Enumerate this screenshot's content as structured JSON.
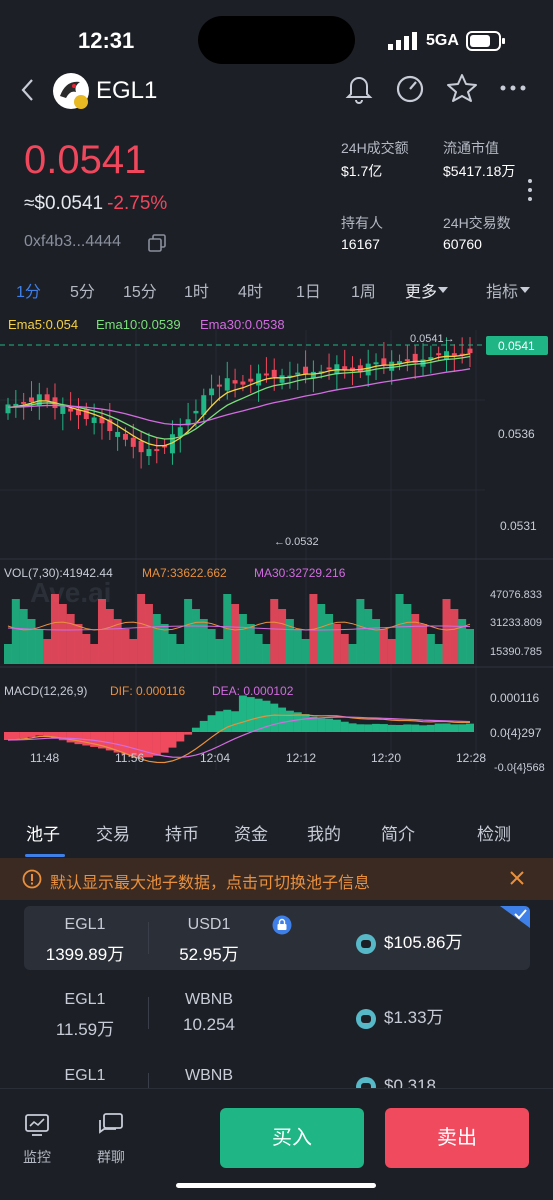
{
  "status_bar": {
    "time": "12:31",
    "network": "5GA"
  },
  "token": {
    "name": "EGL1",
    "price": "0.0541",
    "price_usd": "≈$0.0541",
    "change": "-2.75%",
    "address": "0xf4b3...4444"
  },
  "stats": [
    {
      "label": "24H成交额",
      "value": "$1.7亿"
    },
    {
      "label": "流通市值",
      "value": "$5417.18万"
    },
    {
      "label": "持有人",
      "value": "16167"
    },
    {
      "label": "24H交易数",
      "value": "60760"
    }
  ],
  "timeframes": [
    "1分",
    "5分",
    "15分",
    "1时",
    "4时",
    "1日",
    "1周",
    "更多",
    "指标"
  ],
  "ema": {
    "ema5": "Ema5:0.054",
    "ema10": "Ema10:0.0539",
    "ema30": "Ema30:0.0538"
  },
  "chart_data": [
    {
      "type": "candlestick",
      "title": "",
      "y_ticks": [
        "0.0541",
        "0.0536",
        "0.0531"
      ],
      "current_price_label": "0.0541",
      "high_marker": "0.0541→",
      "low_marker": "←0.0532",
      "x_ticks": [
        "11:48",
        "11:56",
        "12:04",
        "12:12",
        "12:20",
        "12:28"
      ],
      "approx_close_series": [
        0.05375,
        0.05378,
        0.05382,
        0.05376,
        0.05372,
        0.0537,
        0.05366,
        0.05359,
        0.05352,
        0.05348,
        0.0535,
        0.0536,
        0.05372,
        0.05385,
        0.05392,
        0.05388,
        0.05394,
        0.05396,
        0.05392,
        0.05398,
        0.05395,
        0.05401,
        0.05397,
        0.05399,
        0.05403,
        0.05401,
        0.05405,
        0.05403,
        0.05409,
        0.05406,
        0.0541
      ]
    },
    {
      "type": "bar",
      "title": "VOL(7,30):41942.44",
      "ma7": "MA7:33622.662",
      "ma30": "MA30:32729.216",
      "y_ticks": [
        "47076.833",
        "31233.809",
        "15390.785"
      ]
    },
    {
      "type": "bar",
      "title": "MACD(12,26,9)",
      "dif": "DIF: 0.000116",
      "dea": "DEA: 0.000102",
      "y_ticks": [
        "0.000116",
        "0.0{4}297",
        "-0.0{4}568"
      ]
    }
  ],
  "watermark": "Ave.ai",
  "tabs": [
    "池子",
    "交易",
    "持币",
    "资金",
    "我的",
    "简介",
    "检测"
  ],
  "notice": "默认显示最大池子数据，点击可切换池子信息",
  "pools": [
    {
      "token_a": "EGL1",
      "amount_a": "1399.89万",
      "token_b": "USD1",
      "amount_b": "52.95万",
      "value": "$105.86万"
    },
    {
      "token_a": "EGL1",
      "amount_a": "11.59万",
      "token_b": "WBNB",
      "amount_b": "10.254",
      "value": "$1.33万"
    },
    {
      "token_a": "EGL1",
      "amount_a": "",
      "token_b": "WBNB",
      "amount_b": "",
      "value": "$0.318"
    }
  ],
  "bottom_nav": {
    "monitor": "监控",
    "group_chat": "群聊",
    "buy": "买入",
    "sell": "卖出"
  },
  "colors": {
    "up": "#1fb584",
    "down": "#f04a5e",
    "accent": "#3f7fe8",
    "ema5": "#f5d142",
    "ema10": "#7be07b",
    "ema30": "#d26ce0"
  }
}
